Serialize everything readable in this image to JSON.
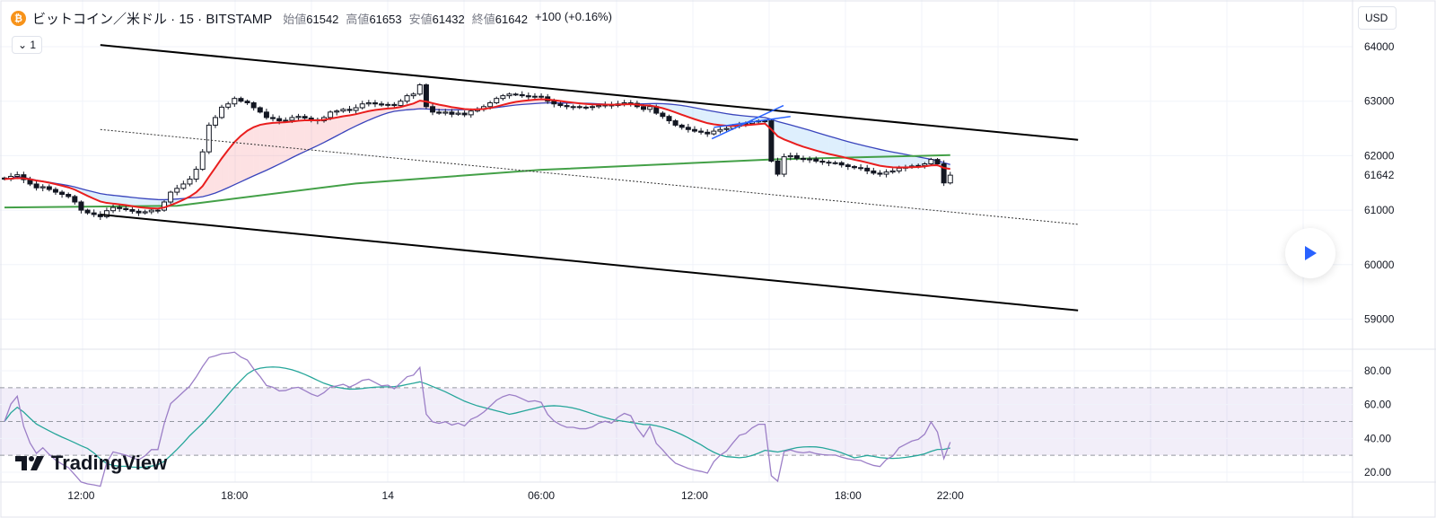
{
  "header": {
    "symbol": "ビットコイン／米ドル · 15 · BITSTAMP",
    "open_label": "始値",
    "open": "61542",
    "high_label": "高値",
    "high": "61653",
    "low_label": "安値",
    "low": "61432",
    "close_label": "終値",
    "close": "61642",
    "change": "+100 (+0.16%)",
    "collapse_label": "1"
  },
  "currency_label": "USD",
  "brand": "TradingView",
  "colors": {
    "ema": "#e91e1e",
    "sma": "#3944bc",
    "ma_long": "#43a047",
    "rsi": "#9c7fc7",
    "rsi_ma": "#26a69a",
    "accent": "#2962ff"
  },
  "chart_data": {
    "type": "candlestick",
    "interval": "15",
    "price_axis": {
      "ticks": [
        64000,
        63000,
        62000,
        61000,
        60000,
        59000
      ],
      "last_price": 61642
    },
    "rsi_axis": {
      "ticks": [
        "80.00",
        "60.00",
        "40.00",
        "20.00"
      ],
      "bands": [
        70,
        50,
        30
      ]
    },
    "time_ticks": [
      {
        "label": "12:00",
        "index": 12
      },
      {
        "label": "18:00",
        "index": 36
      },
      {
        "label": "14",
        "index": 60
      },
      {
        "label": "06:00",
        "index": 84
      },
      {
        "label": "12:00",
        "index": 108
      },
      {
        "label": "18:00",
        "index": 132
      },
      {
        "label": "22:00",
        "index": 148
      }
    ],
    "closes": [
      61570,
      61620,
      61650,
      61560,
      61480,
      61410,
      61430,
      61380,
      61330,
      61290,
      61250,
      61150,
      61000,
      60950,
      60920,
      60880,
      60990,
      61050,
      61030,
      61010,
      60980,
      60950,
      60970,
      61000,
      61000,
      61150,
      61330,
      61400,
      61480,
      61570,
      61750,
      62070,
      62560,
      62700,
      62890,
      62950,
      63050,
      63000,
      62970,
      62880,
      62800,
      62700,
      62680,
      62640,
      62650,
      62700,
      62720,
      62690,
      62660,
      62640,
      62700,
      62800,
      62820,
      62850,
      62830,
      62880,
      62950,
      62970,
      62950,
      62930,
      62940,
      62920,
      63000,
      63100,
      63130,
      63300,
      62900,
      62800,
      62780,
      62800,
      62760,
      62780,
      62750,
      62820,
      62850,
      62900,
      62970,
      63050,
      63100,
      63130,
      63120,
      63100,
      63080,
      63090,
      63080,
      63000,
      62950,
      62920,
      62900,
      62900,
      62890,
      62890,
      62900,
      62920,
      62930,
      62920,
      62950,
      62970,
      62960,
      62900,
      62850,
      62900,
      62780,
      62720,
      62640,
      62560,
      62520,
      62480,
      62450,
      62430,
      62400,
      62450,
      62480,
      62500,
      62540,
      62580,
      62590,
      62620,
      62640,
      62640,
      61900,
      61660,
      61980,
      62000,
      61950,
      61930,
      61940,
      61900,
      61880,
      61870,
      61870,
      61830,
      61800,
      61780,
      61770,
      61720,
      61680,
      61660,
      61700,
      61720,
      61770,
      61790,
      61810,
      61820,
      61850,
      61930,
      61850,
      61500,
      61642
    ],
    "long_ma": [
      [
        0,
        61050
      ],
      [
        27,
        61080
      ],
      [
        55,
        61490
      ],
      [
        84,
        61740
      ],
      [
        120,
        61930
      ],
      [
        148,
        62010
      ]
    ],
    "drawings": [
      {
        "name": "channel-upper",
        "from": [
          15,
          64030
        ],
        "to": [
          168,
          62290
        ],
        "style": "solid"
      },
      {
        "name": "channel-lower",
        "from": [
          15,
          60920
        ],
        "to": [
          168,
          59160
        ],
        "style": "solid"
      },
      {
        "name": "channel-mid",
        "from": [
          15,
          62480
        ],
        "to": [
          168,
          60740
        ],
        "style": "dotted"
      },
      {
        "name": "wedge-line-1",
        "from": [
          110.7,
          62310
        ],
        "to": [
          121.9,
          62920
        ],
        "style": "blue"
      },
      {
        "name": "wedge-line-2",
        "from": [
          111,
          62520
        ],
        "to": [
          123,
          62720
        ],
        "style": "blue"
      }
    ]
  }
}
